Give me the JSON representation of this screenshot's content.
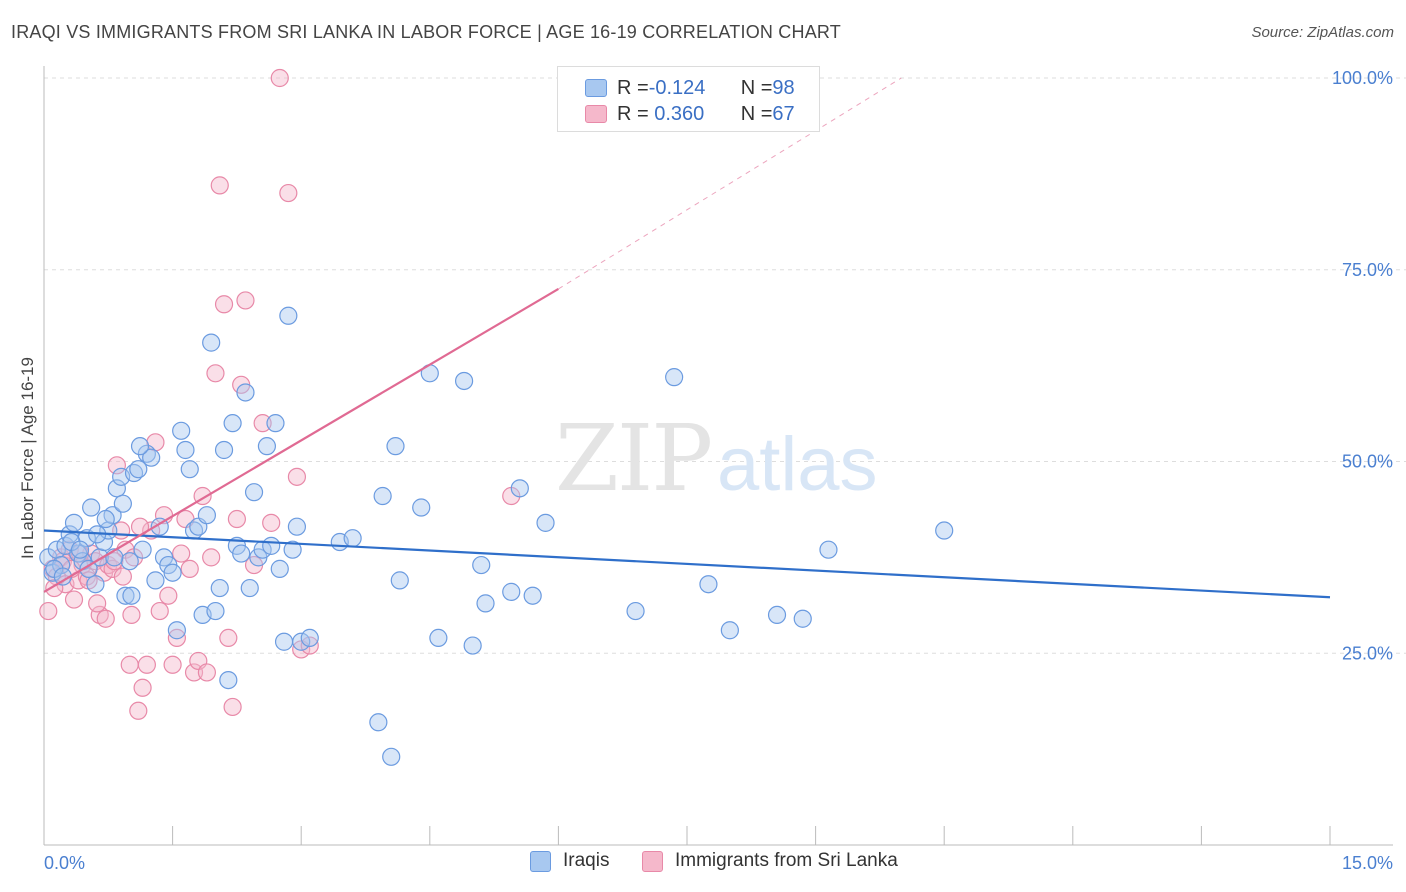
{
  "title": "IRAQI VS IMMIGRANTS FROM SRI LANKA IN LABOR FORCE | AGE 16-19 CORRELATION CHART",
  "source": "Source: ZipAtlas.com",
  "watermark": {
    "zip": "ZIP",
    "atlas": "atlas"
  },
  "legend_top": {
    "rows": [
      {
        "r_label": "R = ",
        "r_value": "-0.124",
        "n_label": "N = ",
        "n_value": "98"
      },
      {
        "r_label": "R = ",
        "r_value": " 0.360",
        "n_label": "N = ",
        "n_value": "67"
      }
    ]
  },
  "legend_bottom": {
    "series1": "Iraqis",
    "series2": "Immigrants from Sri Lanka"
  },
  "colors": {
    "blue_fill": "#a8c8f0",
    "blue_stroke": "#6b9be0",
    "blue_line": "#2f6fca",
    "pink_fill": "#f5b8cb",
    "pink_stroke": "#e889a8",
    "pink_line": "#e06a93",
    "axis_text": "#4a7fd0",
    "grid": "#dddddd"
  },
  "chart_data": {
    "type": "scatter",
    "title": "IRAQI VS IMMIGRANTS FROM SRI LANKA IN LABOR FORCE | AGE 16-19 CORRELATION CHART",
    "xlabel": "",
    "ylabel": "In Labor Force | Age 16-19",
    "xlim": [
      0,
      15
    ],
    "ylim": [
      0,
      102
    ],
    "x_tick_labels": [
      {
        "value": 0,
        "label": "0.0%"
      },
      {
        "value": 15,
        "label": "15.0%"
      }
    ],
    "y_tick_labels": [
      {
        "value": 25,
        "label": "25.0%"
      },
      {
        "value": 50,
        "label": "50.0%"
      },
      {
        "value": 75,
        "label": "75.0%"
      },
      {
        "value": 100,
        "label": "100.0%"
      }
    ],
    "x_minor_ticks": [
      1.5,
      3.0,
      4.5,
      6.0,
      7.5,
      9.0,
      10.5,
      12.0,
      13.5,
      15.0
    ],
    "series": [
      {
        "name": "Iraqis",
        "R": -0.124,
        "N": 98,
        "trend": {
          "x0": 0,
          "y0": 41.0,
          "x1": 15,
          "y1": 32.3
        },
        "points": [
          [
            0.05,
            37.5
          ],
          [
            0.1,
            35.5
          ],
          [
            0.15,
            38.5
          ],
          [
            0.2,
            36.5
          ],
          [
            0.25,
            39.0
          ],
          [
            0.3,
            40.5
          ],
          [
            0.35,
            42.0
          ],
          [
            0.4,
            38.0
          ],
          [
            0.45,
            37.0
          ],
          [
            0.5,
            40.0
          ],
          [
            0.55,
            44.0
          ],
          [
            0.6,
            34.0
          ],
          [
            0.65,
            37.5
          ],
          [
            0.7,
            39.5
          ],
          [
            0.75,
            41.0
          ],
          [
            0.8,
            43.0
          ],
          [
            0.85,
            46.5
          ],
          [
            0.9,
            48.0
          ],
          [
            0.95,
            32.5
          ],
          [
            1.0,
            37.0
          ],
          [
            1.05,
            48.5
          ],
          [
            1.1,
            49.0
          ],
          [
            1.15,
            38.5
          ],
          [
            1.2,
            51.0
          ],
          [
            1.25,
            50.5
          ],
          [
            1.3,
            34.5
          ],
          [
            1.35,
            41.5
          ],
          [
            1.4,
            37.5
          ],
          [
            1.45,
            36.5
          ],
          [
            1.5,
            35.5
          ],
          [
            1.55,
            28.0
          ],
          [
            1.6,
            54.0
          ],
          [
            1.65,
            51.5
          ],
          [
            1.7,
            49.0
          ],
          [
            1.75,
            41.0
          ],
          [
            1.8,
            41.5
          ],
          [
            1.85,
            30.0
          ],
          [
            1.9,
            43.0
          ],
          [
            1.95,
            65.5
          ],
          [
            2.0,
            30.5
          ],
          [
            2.05,
            33.5
          ],
          [
            2.1,
            51.5
          ],
          [
            2.15,
            21.5
          ],
          [
            2.2,
            55.0
          ],
          [
            2.25,
            39.0
          ],
          [
            2.3,
            38.0
          ],
          [
            2.35,
            59.0
          ],
          [
            2.4,
            33.5
          ],
          [
            2.45,
            46.0
          ],
          [
            2.5,
            37.5
          ],
          [
            2.55,
            38.5
          ],
          [
            2.6,
            52.0
          ],
          [
            2.65,
            39.0
          ],
          [
            2.7,
            55.0
          ],
          [
            2.75,
            36.0
          ],
          [
            2.8,
            26.5
          ],
          [
            2.85,
            69.0
          ],
          [
            2.9,
            38.5
          ],
          [
            2.95,
            41.5
          ],
          [
            3.0,
            26.5
          ],
          [
            3.1,
            27.0
          ],
          [
            3.45,
            39.5
          ],
          [
            3.6,
            40.0
          ],
          [
            3.9,
            16.0
          ],
          [
            3.95,
            45.5
          ],
          [
            4.05,
            11.5
          ],
          [
            4.1,
            52.0
          ],
          [
            4.15,
            34.5
          ],
          [
            4.4,
            44.0
          ],
          [
            4.5,
            61.5
          ],
          [
            4.6,
            27.0
          ],
          [
            4.9,
            60.5
          ],
          [
            5.0,
            26.0
          ],
          [
            5.1,
            36.5
          ],
          [
            5.15,
            31.5
          ],
          [
            5.45,
            33.0
          ],
          [
            5.55,
            46.5
          ],
          [
            5.7,
            32.5
          ],
          [
            5.85,
            42.0
          ],
          [
            6.9,
            30.5
          ],
          [
            7.35,
            61.0
          ],
          [
            7.75,
            34.0
          ],
          [
            8.0,
            28.0
          ],
          [
            8.55,
            30.0
          ],
          [
            8.85,
            29.5
          ],
          [
            9.15,
            38.5
          ],
          [
            10.5,
            41.0
          ],
          [
            0.12,
            36.0
          ],
          [
            0.22,
            35.0
          ],
          [
            0.32,
            39.5
          ],
          [
            0.42,
            38.5
          ],
          [
            0.52,
            36.0
          ],
          [
            0.62,
            40.5
          ],
          [
            0.72,
            42.5
          ],
          [
            0.82,
            37.5
          ],
          [
            0.92,
            44.5
          ],
          [
            1.02,
            32.5
          ],
          [
            1.12,
            52.0
          ]
        ]
      },
      {
        "name": "Immigrants from Sri Lanka",
        "R": 0.36,
        "N": 67,
        "trend": {
          "x0": 0,
          "y0": 33.0,
          "x1": 6.0,
          "y1": 72.5,
          "dash_x1": 10.0,
          "dash_y1": 100.0
        },
        "points": [
          [
            0.05,
            30.5
          ],
          [
            0.1,
            36.0
          ],
          [
            0.15,
            35.0
          ],
          [
            0.2,
            37.5
          ],
          [
            0.25,
            34.0
          ],
          [
            0.3,
            38.5
          ],
          [
            0.35,
            32.0
          ],
          [
            0.4,
            34.5
          ],
          [
            0.45,
            36.5
          ],
          [
            0.5,
            35.0
          ],
          [
            0.55,
            38.0
          ],
          [
            0.6,
            37.0
          ],
          [
            0.65,
            30.0
          ],
          [
            0.7,
            35.5
          ],
          [
            0.75,
            36.5
          ],
          [
            0.8,
            36.0
          ],
          [
            0.85,
            49.5
          ],
          [
            0.9,
            41.0
          ],
          [
            0.95,
            38.5
          ],
          [
            1.0,
            23.5
          ],
          [
            1.05,
            37.5
          ],
          [
            1.1,
            17.5
          ],
          [
            1.15,
            20.5
          ],
          [
            1.2,
            23.5
          ],
          [
            1.25,
            41.0
          ],
          [
            1.3,
            52.5
          ],
          [
            1.35,
            30.5
          ],
          [
            1.4,
            43.0
          ],
          [
            1.45,
            32.5
          ],
          [
            1.5,
            23.5
          ],
          [
            1.55,
            27.0
          ],
          [
            1.6,
            38.0
          ],
          [
            1.65,
            42.5
          ],
          [
            1.7,
            36.0
          ],
          [
            1.75,
            22.5
          ],
          [
            1.8,
            24.0
          ],
          [
            1.85,
            45.5
          ],
          [
            1.9,
            22.5
          ],
          [
            1.95,
            37.5
          ],
          [
            2.0,
            61.5
          ],
          [
            2.05,
            86.0
          ],
          [
            2.1,
            70.5
          ],
          [
            2.15,
            27.0
          ],
          [
            2.2,
            18.0
          ],
          [
            2.25,
            42.5
          ],
          [
            2.3,
            60.0
          ],
          [
            2.35,
            71.0
          ],
          [
            2.45,
            36.5
          ],
          [
            2.55,
            55.0
          ],
          [
            2.65,
            42.0
          ],
          [
            2.75,
            100.0
          ],
          [
            2.85,
            85.0
          ],
          [
            2.95,
            48.0
          ],
          [
            3.0,
            25.5
          ],
          [
            3.1,
            26.0
          ],
          [
            5.45,
            45.5
          ],
          [
            0.12,
            33.5
          ],
          [
            0.22,
            37.0
          ],
          [
            0.32,
            36.0
          ],
          [
            0.42,
            38.0
          ],
          [
            0.52,
            34.5
          ],
          [
            0.62,
            31.5
          ],
          [
            0.72,
            29.5
          ],
          [
            0.82,
            37.0
          ],
          [
            0.92,
            35.0
          ],
          [
            1.02,
            30.0
          ],
          [
            1.12,
            41.5
          ]
        ]
      }
    ]
  }
}
